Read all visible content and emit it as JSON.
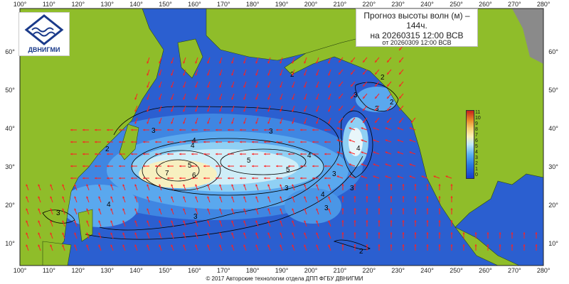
{
  "title": {
    "line1": "Прогноз высоты волн (м) –",
    "line2": "144ч.",
    "line3": "на 20260315 12:00 ВСВ",
    "line4": "от 20260309 12:00 ВСВ"
  },
  "logo": {
    "text": "ДВНИГМИ",
    "icon": "wave-logo-icon"
  },
  "footer": "© 2017 Авторские технологии отдела ДПП ФГБУ ДВНИГМИ",
  "lon_labels": [
    "100°",
    "110°",
    "120°",
    "130°",
    "140°",
    "150°",
    "160°",
    "170°",
    "180°",
    "190°",
    "200°",
    "210°",
    "220°",
    "230°",
    "240°",
    "250°",
    "260°",
    "270°",
    "280°"
  ],
  "lat_labels": [
    "60°",
    "50°",
    "40°",
    "30°",
    "20°",
    "10°"
  ],
  "colorbar": {
    "labels": [
      "11",
      "10",
      "9",
      "8",
      "7",
      "6",
      "5",
      "4",
      "3",
      "2",
      "1",
      "0"
    ],
    "colors": [
      "#1a3acc",
      "#2a7ae0",
      "#5ab0f0",
      "#bfe8f8",
      "#fbf3b8",
      "#f5d070",
      "#e98a2a",
      "#c8201a"
    ]
  },
  "contour_labels": [
    "3",
    "4",
    "5",
    "6",
    "7",
    "5",
    "5",
    "4",
    "3",
    "3",
    "2",
    "3",
    "2",
    "3",
    "4",
    "4",
    "3",
    "2",
    "4",
    "3",
    "4",
    "3",
    "2",
    "3",
    "3",
    "2"
  ]
}
